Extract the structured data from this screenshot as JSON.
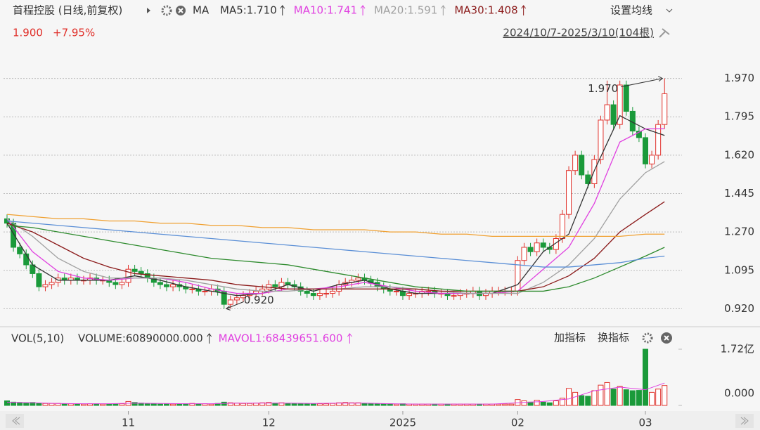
{
  "header": {
    "title": "首程控股 (日线,前复权)",
    "ma_label": "MA",
    "settings": "设置均线",
    "last_label": "1.900",
    "change_label": "+7.95%",
    "range": "2024/10/7-2025/3/10(104根)"
  },
  "chart_data": {
    "type": "candlestick",
    "open": [
      1.33,
      1.31,
      1.2,
      1.17,
      1.12,
      1.08,
      1.02,
      1.03,
      1.04,
      1.06,
      1.05,
      1.06,
      1.05,
      1.05,
      1.06,
      1.05,
      1.05,
      1.04,
      1.03,
      1.04,
      1.1,
      1.09,
      1.08,
      1.06,
      1.04,
      1.03,
      1.02,
      1.03,
      1.02,
      1.01,
      1.01,
      1.0,
      1.0,
      1.01,
      1.0,
      0.94,
      0.96,
      0.97,
      0.98,
      0.99,
      1.0,
      1.01,
      1.03,
      1.02,
      1.04,
      1.03,
      1.02,
      1.0,
      0.99,
      0.98,
      0.99,
      0.99,
      1.0,
      1.03,
      1.04,
      1.05,
      1.06,
      1.05,
      1.04,
      1.02,
      1.01,
      1.0,
      1.0,
      0.98,
      0.99,
      0.99,
      1.0,
      1.0,
      0.99,
      0.99,
      0.98,
      0.98,
      0.99,
      0.99,
      1.0,
      0.98,
      0.99,
      1.0,
      1.0,
      1.0,
      1.0,
      1.14,
      1.2,
      1.18,
      1.22,
      1.2,
      1.19,
      1.24,
      1.35,
      1.55,
      1.62,
      1.53,
      1.49,
      1.6,
      1.78,
      1.85,
      1.76,
      1.94,
      1.82,
      1.73,
      1.7,
      1.58,
      1.62,
      1.76
    ],
    "high": [
      1.35,
      1.33,
      1.22,
      1.19,
      1.14,
      1.1,
      1.05,
      1.06,
      1.08,
      1.08,
      1.08,
      1.08,
      1.07,
      1.08,
      1.08,
      1.07,
      1.07,
      1.06,
      1.06,
      1.12,
      1.12,
      1.11,
      1.1,
      1.08,
      1.06,
      1.05,
      1.05,
      1.05,
      1.04,
      1.03,
      1.03,
      1.02,
      1.03,
      1.03,
      1.02,
      0.98,
      0.99,
      1.0,
      1.01,
      1.02,
      1.03,
      1.05,
      1.05,
      1.06,
      1.06,
      1.05,
      1.04,
      1.02,
      1.01,
      1.01,
      1.01,
      1.02,
      1.05,
      1.06,
      1.07,
      1.08,
      1.08,
      1.07,
      1.06,
      1.04,
      1.03,
      1.02,
      1.02,
      1.01,
      1.01,
      1.02,
      1.02,
      1.02,
      1.01,
      1.01,
      1.0,
      1.01,
      1.01,
      1.02,
      1.02,
      1.01,
      1.02,
      1.02,
      1.02,
      1.02,
      1.16,
      1.22,
      1.22,
      1.24,
      1.24,
      1.22,
      1.26,
      1.37,
      1.57,
      1.64,
      1.64,
      1.55,
      1.62,
      1.8,
      1.96,
      1.87,
      1.96,
      1.96,
      1.84,
      1.75,
      1.72,
      1.64,
      1.78,
      1.97
    ],
    "low": [
      1.29,
      1.18,
      1.15,
      1.1,
      1.06,
      1.0,
      1.0,
      1.01,
      1.02,
      1.03,
      1.03,
      1.03,
      1.03,
      1.03,
      1.03,
      1.03,
      1.02,
      1.01,
      1.01,
      1.02,
      1.07,
      1.06,
      1.04,
      1.02,
      1.01,
      1.0,
      1.0,
      1.0,
      0.99,
      0.99,
      0.98,
      0.98,
      0.98,
      0.98,
      0.92,
      0.92,
      0.94,
      0.95,
      0.96,
      0.97,
      0.98,
      0.99,
      1.0,
      1.0,
      1.01,
      1.0,
      0.98,
      0.97,
      0.96,
      0.96,
      0.97,
      0.97,
      0.98,
      1.01,
      1.02,
      1.03,
      1.03,
      1.02,
      1.0,
      0.99,
      0.98,
      0.98,
      0.96,
      0.96,
      0.97,
      0.97,
      0.98,
      0.97,
      0.97,
      0.96,
      0.96,
      0.96,
      0.97,
      0.97,
      0.96,
      0.96,
      0.97,
      0.98,
      0.98,
      0.98,
      0.98,
      1.12,
      1.16,
      1.16,
      1.18,
      1.17,
      1.17,
      1.22,
      1.33,
      1.53,
      1.51,
      1.47,
      1.47,
      1.58,
      1.76,
      1.74,
      1.74,
      1.8,
      1.71,
      1.68,
      1.56,
      1.56,
      1.6,
      1.74
    ],
    "close": [
      1.31,
      1.2,
      1.17,
      1.12,
      1.08,
      1.02,
      1.03,
      1.04,
      1.06,
      1.05,
      1.06,
      1.05,
      1.05,
      1.06,
      1.05,
      1.05,
      1.04,
      1.03,
      1.04,
      1.1,
      1.09,
      1.08,
      1.06,
      1.04,
      1.03,
      1.02,
      1.03,
      1.02,
      1.01,
      1.01,
      1.0,
      1.0,
      1.01,
      1.0,
      0.94,
      0.96,
      0.97,
      0.98,
      0.99,
      1.0,
      1.01,
      1.03,
      1.02,
      1.04,
      1.03,
      1.02,
      1.0,
      0.99,
      0.98,
      0.99,
      0.99,
      1.0,
      1.03,
      1.04,
      1.05,
      1.06,
      1.05,
      1.04,
      1.02,
      1.01,
      1.0,
      1.0,
      0.98,
      0.99,
      0.99,
      1.0,
      1.0,
      0.99,
      0.99,
      0.98,
      0.98,
      0.99,
      0.99,
      1.0,
      0.98,
      0.99,
      1.0,
      1.0,
      1.0,
      1.0,
      1.14,
      1.2,
      1.18,
      1.22,
      1.2,
      1.19,
      1.24,
      1.35,
      1.55,
      1.62,
      1.53,
      1.49,
      1.6,
      1.78,
      1.85,
      1.76,
      1.94,
      1.82,
      1.73,
      1.7,
      1.58,
      1.62,
      1.76,
      1.9
    ],
    "volume": [
      14000000,
      10000000,
      9000000,
      8000000,
      9000000,
      7000000,
      6000000,
      6000000,
      6000000,
      5000000,
      5000000,
      5000000,
      4000000,
      5000000,
      5000000,
      4000000,
      4000000,
      4000000,
      5000000,
      12000000,
      9000000,
      7000000,
      5000000,
      5000000,
      4000000,
      5000000,
      4000000,
      4000000,
      5000000,
      6000000,
      5000000,
      5000000,
      4000000,
      6000000,
      10000000,
      8000000,
      7000000,
      6000000,
      6000000,
      7000000,
      8000000,
      9000000,
      7000000,
      8000000,
      6000000,
      6000000,
      5000000,
      5000000,
      5000000,
      5000000,
      5000000,
      6000000,
      8000000,
      9000000,
      8000000,
      8000000,
      6000000,
      6000000,
      5000000,
      5000000,
      5000000,
      4000000,
      5000000,
      4000000,
      4000000,
      4000000,
      4000000,
      4000000,
      4000000,
      4000000,
      4000000,
      4000000,
      4000000,
      4000000,
      4000000,
      4000000,
      4000000,
      4000000,
      4000000,
      4000000,
      18000000,
      14000000,
      10000000,
      16000000,
      10000000,
      8000000,
      14000000,
      22000000,
      52000000,
      40000000,
      30000000,
      28000000,
      45000000,
      62000000,
      70000000,
      50000000,
      58000000,
      48000000,
      45000000,
      46000000,
      172000000,
      40000000,
      50000000,
      60890000
    ],
    "up_color": "#e0302a",
    "down_color": "#1a9a3a",
    "ylim": [
      0.87,
      2.02
    ],
    "yticks": [
      {
        "value": 1.97,
        "label": "1.970"
      },
      {
        "value": 1.795,
        "label": "1.795"
      },
      {
        "value": 1.62,
        "label": "1.620"
      },
      {
        "value": 1.445,
        "label": "1.445"
      },
      {
        "value": 1.27,
        "label": "1.270"
      },
      {
        "value": 1.095,
        "label": "1.095"
      },
      {
        "value": 0.92,
        "label": "0.920"
      }
    ],
    "grid": true,
    "high_label": "1.970",
    "low_label": "0.920",
    "xticks": [
      {
        "value": 19,
        "label": "11"
      },
      {
        "value": 41,
        "label": "12"
      },
      {
        "value": 62,
        "label": "2025"
      },
      {
        "value": 80,
        "label": "02"
      },
      {
        "value": 100,
        "label": "03"
      }
    ],
    "ma_x": [
      0,
      4,
      8,
      12,
      16,
      20,
      24,
      28,
      32,
      36,
      40,
      44,
      48,
      52,
      56,
      60,
      64,
      68,
      72,
      76,
      80,
      84,
      88,
      92,
      96,
      100,
      103
    ],
    "ma": [
      {
        "legend": "MA5:1.710",
        "color": "#333333",
        "values": [
          1.31,
          1.12,
          1.05,
          1.05,
          1.05,
          1.07,
          1.05,
          1.02,
          1.0,
          0.98,
          0.99,
          1.03,
          1.0,
          1.03,
          1.05,
          1.01,
          0.99,
          0.99,
          0.99,
          0.99,
          1.03,
          1.18,
          1.26,
          1.55,
          1.8,
          1.74,
          1.71
        ]
      },
      {
        "legend": "MA10:1.741",
        "color": "#e040e0",
        "values": [
          1.33,
          1.18,
          1.09,
          1.06,
          1.05,
          1.06,
          1.06,
          1.04,
          1.01,
          0.99,
          0.99,
          1.01,
          1.01,
          1.02,
          1.04,
          1.02,
          1.0,
          0.99,
          0.99,
          0.99,
          1.0,
          1.1,
          1.2,
          1.4,
          1.68,
          1.74,
          1.741
        ]
      },
      {
        "legend": "MA20:1.591",
        "color": "#a0a0a0",
        "values": [
          1.33,
          1.25,
          1.15,
          1.09,
          1.06,
          1.06,
          1.06,
          1.05,
          1.03,
          1.01,
          1.0,
          1.0,
          1.01,
          1.01,
          1.02,
          1.02,
          1.01,
          1.0,
          0.99,
          0.99,
          0.99,
          1.04,
          1.12,
          1.24,
          1.42,
          1.54,
          1.591
        ]
      },
      {
        "legend": "MA30:1.408",
        "color": "#8b1a1a",
        "values": [
          1.31,
          1.27,
          1.21,
          1.15,
          1.11,
          1.08,
          1.07,
          1.06,
          1.05,
          1.03,
          1.02,
          1.01,
          1.01,
          1.01,
          1.01,
          1.01,
          1.01,
          1.0,
          1.0,
          1.0,
          1.0,
          1.02,
          1.07,
          1.15,
          1.27,
          1.35,
          1.408
        ]
      },
      {
        "color": "#2e8b2e",
        "values": [
          1.3,
          1.29,
          1.27,
          1.25,
          1.23,
          1.21,
          1.19,
          1.17,
          1.15,
          1.14,
          1.13,
          1.12,
          1.1,
          1.08,
          1.06,
          1.04,
          1.02,
          1.01,
          1.0,
          1.0,
          1.0,
          1.0,
          1.02,
          1.06,
          1.11,
          1.16,
          1.2
        ]
      },
      {
        "color": "#5b8fd6",
        "values": [
          1.32,
          1.31,
          1.3,
          1.29,
          1.28,
          1.27,
          1.26,
          1.25,
          1.24,
          1.23,
          1.22,
          1.21,
          1.2,
          1.19,
          1.18,
          1.17,
          1.16,
          1.15,
          1.14,
          1.13,
          1.12,
          1.11,
          1.11,
          1.12,
          1.13,
          1.15,
          1.16
        ]
      },
      {
        "color": "#f0a030",
        "values": [
          1.35,
          1.34,
          1.33,
          1.33,
          1.32,
          1.32,
          1.31,
          1.31,
          1.3,
          1.3,
          1.29,
          1.29,
          1.28,
          1.28,
          1.28,
          1.27,
          1.27,
          1.26,
          1.26,
          1.25,
          1.25,
          1.25,
          1.25,
          1.25,
          1.25,
          1.26,
          1.26
        ]
      }
    ],
    "vol_title": "VOL(5,10)",
    "vol_legend": "VOLUME:60890000.000",
    "vol_ylim": [
      0,
      172000000
    ],
    "vol_ticks": [
      {
        "value": 172000000,
        "label": "1.72亿"
      },
      {
        "value": 0,
        "label": "0.000"
      }
    ],
    "vol_ma": {
      "legend": "MAVOL1:68439651.600",
      "color": "#e040e0",
      "values": [
        10000000,
        8000000,
        6000000,
        5000000,
        5000000,
        7000000,
        6000000,
        5000000,
        5000000,
        7000000,
        7000000,
        7000000,
        6000000,
        7000000,
        7000000,
        5000000,
        4000000,
        4000000,
        4000000,
        4000000,
        8000000,
        12000000,
        20000000,
        45000000,
        56000000,
        48000000,
        68439651.6
      ]
    },
    "add_indicator": "加指标",
    "switch_indicator": "换指标"
  }
}
